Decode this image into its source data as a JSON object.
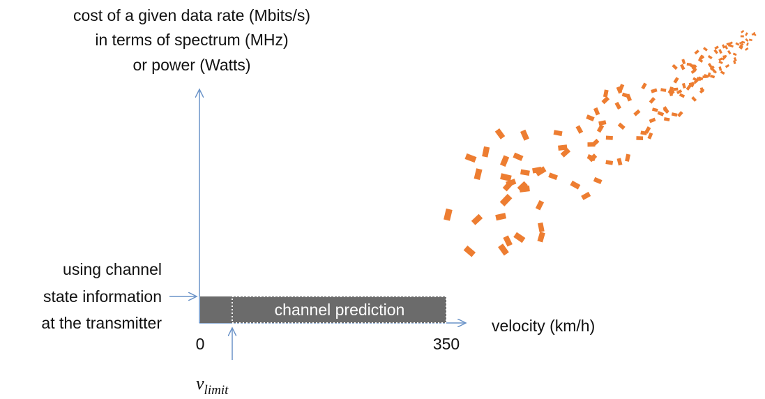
{
  "y_axis_label": {
    "lines": [
      "cost of a given data rate (Mbits/s)",
      "in terms of spectrum (MHz)",
      "or power (Watts)"
    ]
  },
  "csi_label": {
    "lines": [
      "using channel",
      "state information",
      "at the transmitter"
    ]
  },
  "prediction_label": "channel prediction",
  "x_axis_label": "velocity (km/h)",
  "x_start": "0",
  "x_end": "350",
  "v_limit": {
    "base": "v",
    "subscript": "limit"
  }
}
